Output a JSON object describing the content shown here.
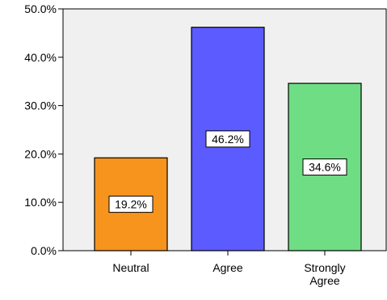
{
  "chart_data": {
    "type": "bar",
    "categories": [
      "Neutral",
      "Agree",
      "Strongly Agree"
    ],
    "category_lines": [
      [
        "Neutral"
      ],
      [
        "Agree"
      ],
      [
        "Strongly",
        "Agree"
      ]
    ],
    "values": [
      19.2,
      46.2,
      34.6
    ],
    "data_labels": [
      "19.2%",
      "46.2%",
      "34.6%"
    ],
    "bar_colors": [
      "#f7941d",
      "#5b5bff",
      "#6fdd84"
    ],
    "yticks": [
      0,
      10,
      20,
      30,
      40,
      50
    ],
    "ytick_labels": [
      "0.0%",
      "10.0%",
      "20.0%",
      "30.0%",
      "40.0%",
      "50.0%"
    ],
    "ylim": [
      0,
      50
    ],
    "title": "",
    "xlabel": "",
    "ylabel": "",
    "grid": false,
    "plot_background": "#f0f0f0"
  }
}
